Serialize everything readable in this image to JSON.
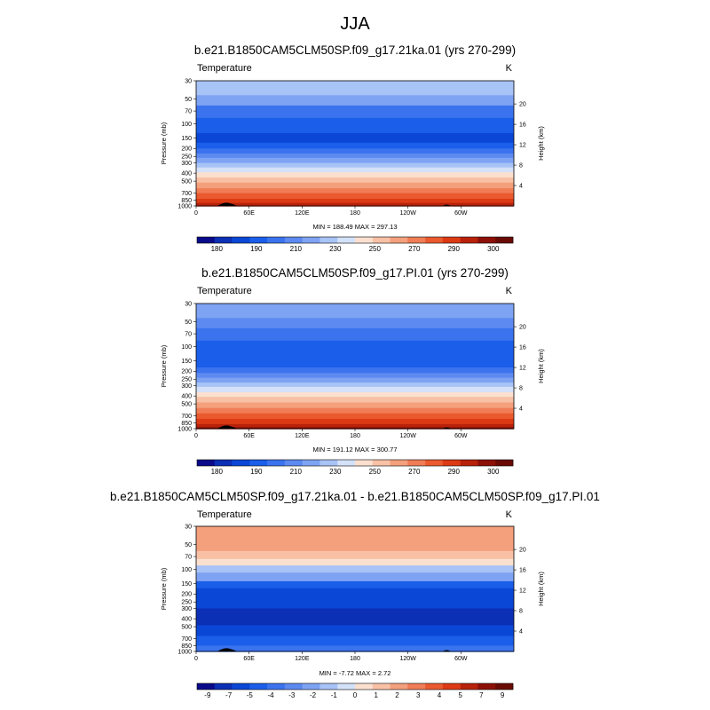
{
  "figure": {
    "title": "JJA"
  },
  "colorbar_colors": [
    "#0a0a8a",
    "#0b2fb5",
    "#0b47d6",
    "#1a5ee9",
    "#3b73ee",
    "#5d8af0",
    "#7ea3f3",
    "#a8c3f6",
    "#d3e1f9",
    "#fbe0d0",
    "#f8c1a5",
    "#f4a07c",
    "#f07d55",
    "#ea5a2e",
    "#dc3a14",
    "#b8220a",
    "#8c1007",
    "#6a0a05"
  ],
  "chart_data": [
    {
      "type": "heatmap",
      "panel": "top",
      "title": "b.e21.B1850CAM5CLM50SP.f09_g17.21ka.01 (yrs 270-299)",
      "variable": "Temperature",
      "units": "K",
      "ylabel": "Pressure (mb)",
      "y2label": "Height (km)",
      "pressure_ticks": [
        30,
        50,
        70,
        100,
        150,
        200,
        250,
        300,
        400,
        500,
        700,
        850,
        1000
      ],
      "height_ticks": [
        4,
        8,
        12,
        16,
        20
      ],
      "lon_ticks": [
        0,
        60,
        120,
        180,
        240,
        300
      ],
      "lon_tick_labels": [
        "0",
        "60E",
        "120E",
        "180",
        "120W",
        "60W"
      ],
      "ylim": [
        30,
        1000
      ],
      "scale": "log",
      "minmax_text": "MIN = 188.49  MAX = 297.13",
      "min": 188.49,
      "max": 297.13,
      "colorbar_labels": [
        "180",
        "190",
        "210",
        "230",
        "250",
        "270",
        "290",
        "300"
      ],
      "profile": [
        {
          "p": 30,
          "c": 7
        },
        {
          "p": 45,
          "c": 6
        },
        {
          "p": 60,
          "c": 4
        },
        {
          "p": 85,
          "c": 3
        },
        {
          "p": 130,
          "c": 2
        },
        {
          "p": 170,
          "c": 3
        },
        {
          "p": 200,
          "c": 4
        },
        {
          "p": 230,
          "c": 5
        },
        {
          "p": 260,
          "c": 6
        },
        {
          "p": 300,
          "c": 7
        },
        {
          "p": 340,
          "c": 8
        },
        {
          "p": 390,
          "c": 9
        },
        {
          "p": 450,
          "c": 10
        },
        {
          "p": 520,
          "c": 11
        },
        {
          "p": 610,
          "c": 12
        },
        {
          "p": 700,
          "c": 13
        },
        {
          "p": 820,
          "c": 14
        },
        {
          "p": 920,
          "c": 15
        },
        {
          "p": 1000,
          "c": 15
        }
      ]
    },
    {
      "type": "heatmap",
      "panel": "middle",
      "title": "b.e21.B1850CAM5CLM50SP.f09_g17.PI.01 (yrs 270-299)",
      "variable": "Temperature",
      "units": "K",
      "ylabel": "Pressure (mb)",
      "y2label": "Height (km)",
      "pressure_ticks": [
        30,
        50,
        70,
        100,
        150,
        200,
        250,
        300,
        400,
        500,
        700,
        850,
        1000
      ],
      "height_ticks": [
        4,
        8,
        12,
        16,
        20
      ],
      "lon_ticks": [
        0,
        60,
        120,
        180,
        240,
        300
      ],
      "lon_tick_labels": [
        "0",
        "60E",
        "120E",
        "180",
        "120W",
        "60W"
      ],
      "ylim": [
        30,
        1000
      ],
      "scale": "log",
      "minmax_text": "MIN = 191.12  MAX = 300.77",
      "min": 191.12,
      "max": 300.77,
      "colorbar_labels": [
        "180",
        "190",
        "210",
        "230",
        "250",
        "270",
        "290",
        "300"
      ],
      "profile": [
        {
          "p": 30,
          "c": 6
        },
        {
          "p": 45,
          "c": 5
        },
        {
          "p": 60,
          "c": 4
        },
        {
          "p": 85,
          "c": 3
        },
        {
          "p": 130,
          "c": 3
        },
        {
          "p": 180,
          "c": 4
        },
        {
          "p": 210,
          "c": 5
        },
        {
          "p": 240,
          "c": 6
        },
        {
          "p": 275,
          "c": 7
        },
        {
          "p": 310,
          "c": 8
        },
        {
          "p": 360,
          "c": 9
        },
        {
          "p": 410,
          "c": 10
        },
        {
          "p": 480,
          "c": 11
        },
        {
          "p": 560,
          "c": 12
        },
        {
          "p": 650,
          "c": 13
        },
        {
          "p": 760,
          "c": 14
        },
        {
          "p": 880,
          "c": 15
        },
        {
          "p": 960,
          "c": 16
        },
        {
          "p": 1000,
          "c": 16
        }
      ]
    },
    {
      "type": "heatmap",
      "panel": "bottom",
      "title": "b.e21.B1850CAM5CLM50SP.f09_g17.21ka.01 - b.e21.B1850CAM5CLM50SP.f09_g17.PI.01",
      "variable": "Temperature",
      "units": "K",
      "ylabel": "Pressure (mb)",
      "y2label": "Height (km)",
      "pressure_ticks": [
        30,
        50,
        70,
        100,
        150,
        200,
        250,
        300,
        400,
        500,
        700,
        850,
        1000
      ],
      "height_ticks": [
        4,
        8,
        12,
        16,
        20
      ],
      "lon_ticks": [
        0,
        60,
        120,
        180,
        240,
        300
      ],
      "lon_tick_labels": [
        "0",
        "60E",
        "120E",
        "180",
        "120W",
        "60W"
      ],
      "ylim": [
        30,
        1000
      ],
      "scale": "log",
      "minmax_text": "MIN = -7.72  MAX =   2.72",
      "min": -7.72,
      "max": 2.72,
      "colorbar_labels": [
        "-9",
        "-7",
        "-5",
        "-4",
        "-3",
        "-2",
        "-1",
        "0",
        "1",
        "2",
        "3",
        "4",
        "5",
        "7",
        "9"
      ],
      "profile": [
        {
          "p": 30,
          "c": 11
        },
        {
          "p": 60,
          "c": 10
        },
        {
          "p": 75,
          "c": 9
        },
        {
          "p": 90,
          "c": 7
        },
        {
          "p": 110,
          "c": 6
        },
        {
          "p": 140,
          "c": 3
        },
        {
          "p": 170,
          "c": 2
        },
        {
          "p": 300,
          "c": 1
        },
        {
          "p": 480,
          "c": 2
        },
        {
          "p": 650,
          "c": 3
        },
        {
          "p": 850,
          "c": 4
        },
        {
          "p": 1000,
          "c": 4
        }
      ]
    }
  ]
}
